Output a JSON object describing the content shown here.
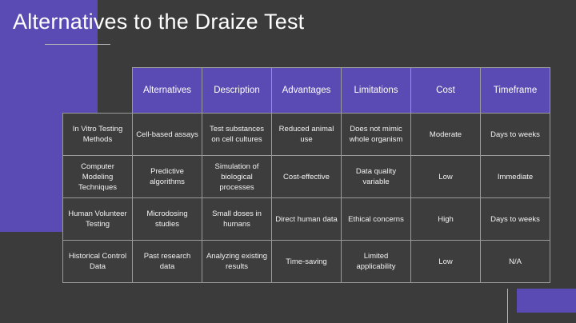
{
  "slide": {
    "title": "Alternatives to the Draize Test",
    "colors": {
      "background": "#3b3b3b",
      "accent": "#5a4ab3",
      "text": "#ffffff",
      "border": "#9a9a9a"
    }
  },
  "table": {
    "headers": [
      "Alternatives",
      "Description",
      "Advantages",
      "Limitations",
      "Cost",
      "Timeframe"
    ],
    "rows": [
      {
        "method": "In Vitro Testing Methods",
        "cells": [
          "Cell-based assays",
          "Test substances on cell cultures",
          "Reduced animal use",
          "Does not mimic whole organism",
          "Moderate",
          "Days to weeks"
        ]
      },
      {
        "method": "Computer Modeling Techniques",
        "cells": [
          "Predictive algorithms",
          "Simulation of biological processes",
          "Cost-effective",
          "Data quality variable",
          "Low",
          "Immediate"
        ]
      },
      {
        "method": "Human Volunteer Testing",
        "cells": [
          "Microdosing studies",
          "Small doses in humans",
          "Direct human data",
          "Ethical concerns",
          "High",
          "Days to weeks"
        ]
      },
      {
        "method": "Historical Control Data",
        "cells": [
          "Past research data",
          "Analyzing existing results",
          "Time-saving",
          "Limited applicability",
          "Low",
          "N/A"
        ]
      }
    ]
  }
}
